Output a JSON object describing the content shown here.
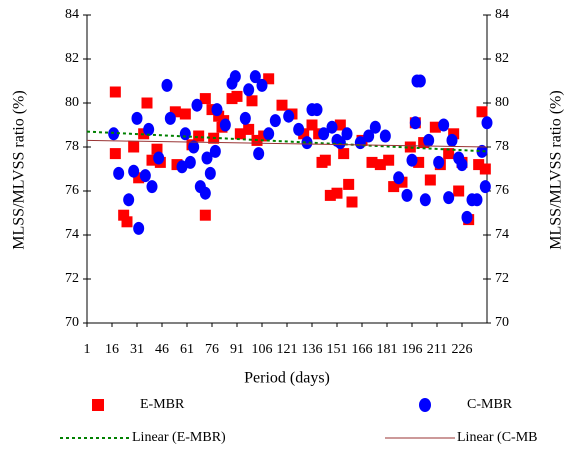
{
  "chart_data": {
    "type": "scatter",
    "x_label": "Period (days)",
    "y_label": "MLSS/MLVSS ratio (%)",
    "y2_label": "MLSS/MLVSS ratio (%)",
    "xlim": [
      1,
      241
    ],
    "xticks": [
      1,
      16,
      31,
      46,
      61,
      76,
      91,
      106,
      121,
      136,
      151,
      166,
      181,
      196,
      211,
      226
    ],
    "ylim": [
      70,
      84
    ],
    "yticks": [
      70,
      72,
      74,
      76,
      78,
      80,
      82,
      84
    ],
    "y2lim": [
      70,
      84
    ],
    "y2ticks": [
      70,
      72,
      74,
      76,
      78,
      80,
      82,
      84
    ],
    "series": [
      {
        "name": "E-MBR",
        "type": "scatter",
        "marker": "square",
        "color": "#ff0000",
        "x": [
          18,
          18,
          23,
          25,
          29,
          32,
          35,
          37,
          40,
          43,
          45,
          54,
          55,
          60,
          64,
          68,
          72,
          72,
          76,
          77,
          80,
          82,
          83,
          88,
          91,
          93,
          98,
          100,
          103,
          107,
          110,
          118,
          124,
          131,
          136,
          140,
          142,
          144,
          147,
          151,
          153,
          155,
          158,
          160,
          166,
          172,
          177,
          182,
          185,
          190,
          195,
          198,
          200,
          203,
          207,
          210,
          213,
          218,
          221,
          224,
          226,
          230,
          236,
          238,
          240
        ],
        "values": [
          80.5,
          77.7,
          74.9,
          74.6,
          78.0,
          76.6,
          78.6,
          80.0,
          77.4,
          77.9,
          77.3,
          79.6,
          77.2,
          79.5,
          78.1,
          78.5,
          80.2,
          74.9,
          79.7,
          78.4,
          79.4,
          78.9,
          79.2,
          80.2,
          80.3,
          78.6,
          78.8,
          80.1,
          78.3,
          78.5,
          81.1,
          79.9,
          79.5,
          78.6,
          79.0,
          78.6,
          77.3,
          77.4,
          75.8,
          75.9,
          79.0,
          77.7,
          76.3,
          75.5,
          78.3,
          77.3,
          77.2,
          77.4,
          76.2,
          76.4,
          78.0,
          79.1,
          77.3,
          78.2,
          76.5,
          78.9,
          77.2,
          77.7,
          78.6,
          76.0,
          77.3,
          74.7,
          77.2,
          79.6,
          77.0
        ]
      },
      {
        "name": "C-MBR",
        "type": "scatter",
        "marker": "circle",
        "color": "#0000ff",
        "x": [
          17,
          20,
          26,
          29,
          31,
          32,
          36,
          38,
          40,
          44,
          49,
          51,
          58,
          60,
          63,
          65,
          67,
          69,
          72,
          73,
          75,
          78,
          79,
          84,
          88,
          90,
          96,
          98,
          102,
          104,
          106,
          110,
          114,
          122,
          128,
          133,
          136,
          139,
          143,
          148,
          151,
          153,
          157,
          165,
          170,
          174,
          180,
          188,
          193,
          196,
          198,
          199,
          201,
          204,
          206,
          212,
          215,
          218,
          220,
          224,
          226,
          229,
          232,
          235,
          238,
          240,
          241
        ],
        "values": [
          78.6,
          76.8,
          75.6,
          76.9,
          79.3,
          74.3,
          76.7,
          78.8,
          76.2,
          77.5,
          80.8,
          79.3,
          77.1,
          78.6,
          77.3,
          78.0,
          79.9,
          76.2,
          75.9,
          77.5,
          76.8,
          77.8,
          79.7,
          79.0,
          80.9,
          81.2,
          79.3,
          80.6,
          81.2,
          77.7,
          80.8,
          78.6,
          79.2,
          79.4,
          78.8,
          78.2,
          79.7,
          79.7,
          78.6,
          78.9,
          78.3,
          78.2,
          78.6,
          78.2,
          78.5,
          78.9,
          78.5,
          76.6,
          75.8,
          77.4,
          79.1,
          81.0,
          81.0,
          75.6,
          78.3,
          77.3,
          79.0,
          75.7,
          78.3,
          77.5,
          77.2,
          74.8,
          75.6,
          75.6,
          77.8,
          76.2,
          79.1
        ]
      },
      {
        "name": "Linear (E-MBR)",
        "type": "line",
        "dash": true,
        "color": "#008000",
        "x": [
          1,
          241
        ],
        "values": [
          78.7,
          77.8
        ]
      },
      {
        "name": "Linear (C-MB",
        "type": "line",
        "dash": false,
        "color": "#993333",
        "x": [
          1,
          241
        ],
        "values": [
          78.3,
          78.0
        ]
      }
    ]
  }
}
